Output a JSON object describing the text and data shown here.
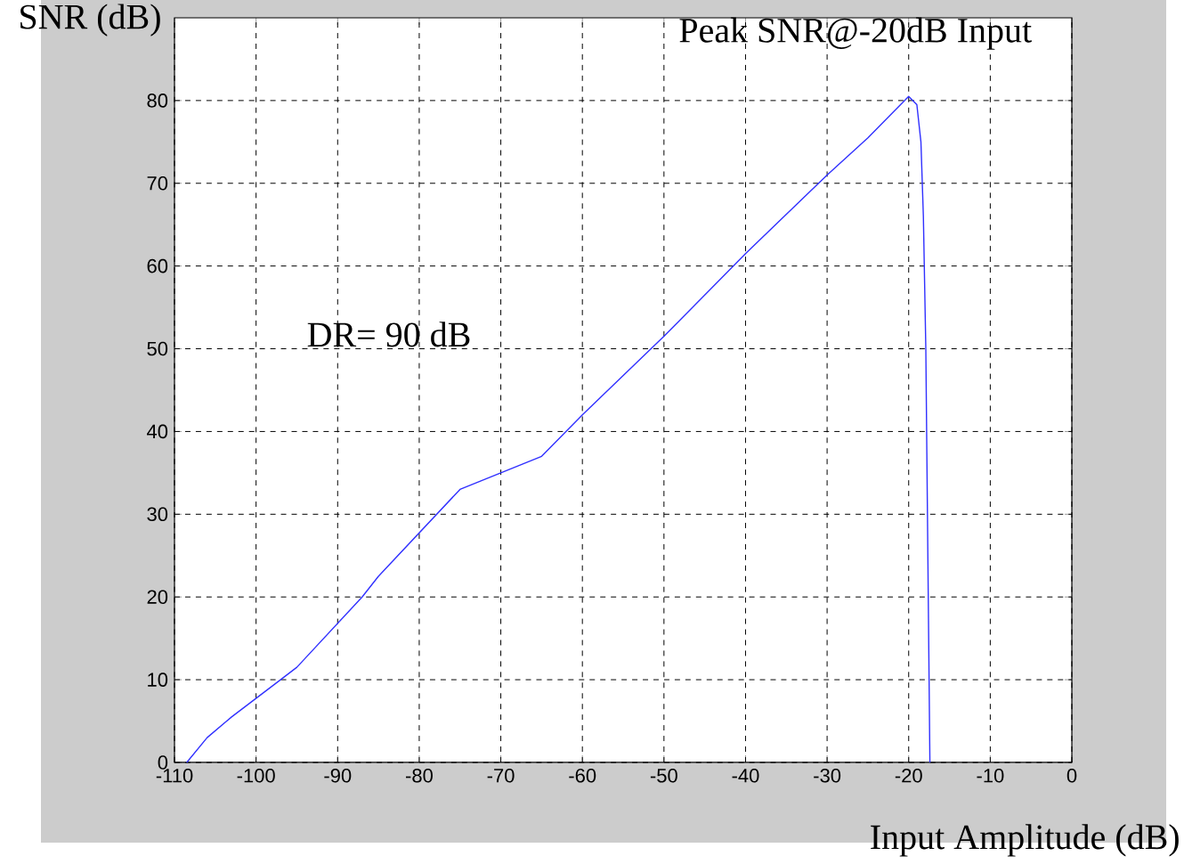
{
  "chart_data": {
    "type": "line",
    "xlabel": "Input Amplitude (dB)",
    "ylabel": "SNR (dB)",
    "annotations": [
      {
        "text": "Peak SNR@-20dB Input",
        "x": -20,
        "y": 80.5
      },
      "DR= 90 dB"
    ],
    "x": [
      -108.5,
      -106,
      -103,
      -97,
      -95,
      -87,
      -85,
      -75,
      -65,
      -60,
      -50,
      -40,
      -30,
      -25,
      -20,
      -19,
      -18.5,
      -18.2,
      -17.9,
      -17.7,
      -17.5,
      -17.4
    ],
    "series": [
      {
        "color": "#3030ff",
        "values": [
          0,
          3,
          5.5,
          10,
          11.5,
          20,
          22.5,
          33,
          37,
          42,
          51.5,
          61.5,
          71,
          75.5,
          80.5,
          79.5,
          75,
          66,
          50,
          30,
          10,
          0
        ]
      }
    ],
    "xlim": [
      -110,
      0
    ],
    "ylim": [
      0,
      90
    ],
    "xticks": [
      -110,
      -100,
      -90,
      -80,
      -70,
      -60,
      -50,
      -40,
      -30,
      -20,
      -10,
      0
    ],
    "yticks": [
      0,
      10,
      20,
      30,
      40,
      50,
      60,
      70,
      80
    ],
    "grid": true,
    "line_style": "solid",
    "marker": "none"
  }
}
